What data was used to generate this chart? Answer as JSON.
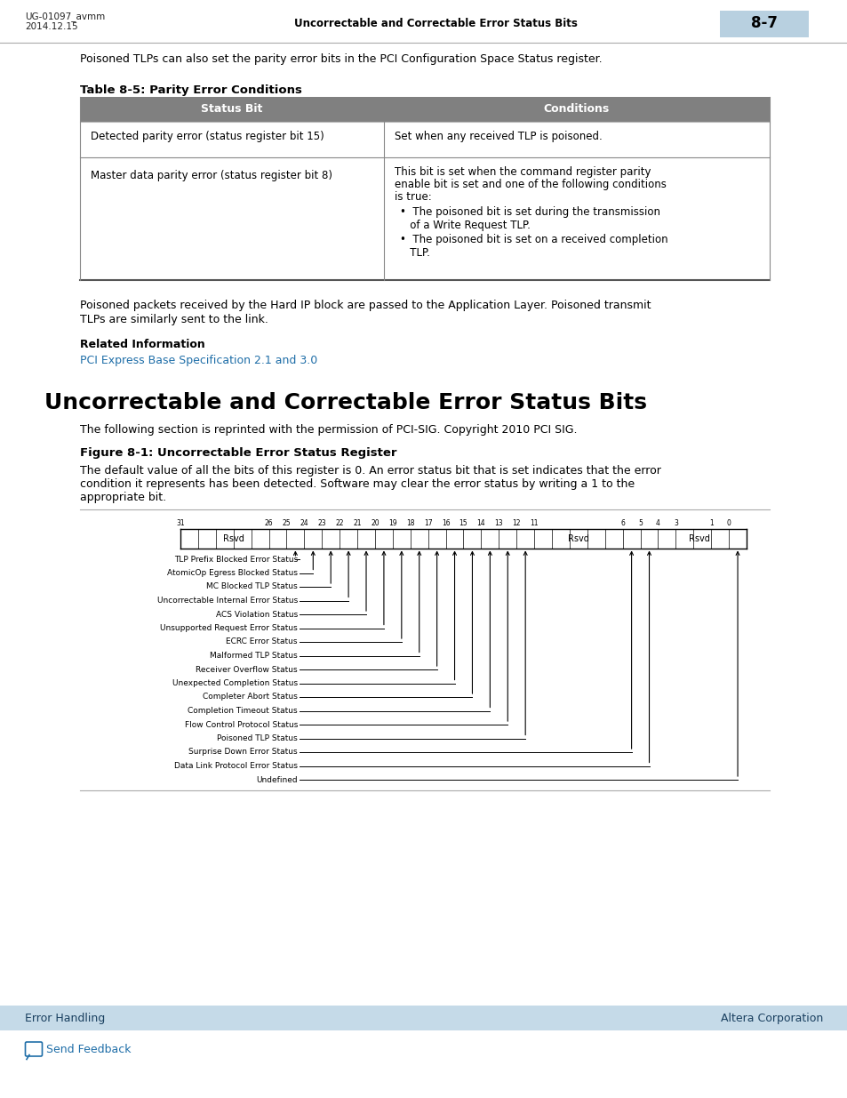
{
  "header_left1": "UG-01097_avmm",
  "header_left2": "2014.12.15",
  "header_center": "Uncorrectable and Correctable Error Status Bits",
  "header_right": "8-7",
  "header_page_bg": "#b8d0e0",
  "intro_text": "Poisoned TLPs can also set the parity error bits in the PCI Configuration Space Status register.",
  "table_title": "Table 8-5: Parity Error Conditions",
  "table_header_bg": "#808080",
  "table_col1_header": "Status Bit",
  "table_col2_header": "Conditions",
  "row1_col1": "Detected parity error (status register bit 15)",
  "row1_col2": "Set when any received TLP is poisoned.",
  "row2_col1": "Master data parity error (status register bit 8)",
  "row2_col2_line1": "This bit is set when the command register parity",
  "row2_col2_line2": "enable bit is set and one of the following conditions",
  "row2_col2_line3": "is true:",
  "row2_col2_bullet1a": "•  The poisoned bit is set during the transmission",
  "row2_col2_bullet1b": "   of a Write Request TLP.",
  "row2_col2_bullet2a": "•  The poisoned bit is set on a received completion",
  "row2_col2_bullet2b": "   TLP.",
  "para1_line1": "Poisoned packets received by the Hard IP block are passed to the Application Layer. Poisoned transmit",
  "para1_line2": "TLPs are similarly sent to the link.",
  "related_info_label": "Related Information",
  "related_info_link": "PCI Express Base Specification 2.1 and 3.0",
  "section_title": "Uncorrectable and Correctable Error Status Bits",
  "section_intro": "The following section is reprinted with the permission of PCI-SIG. Copyright 2010 PCI SIG.",
  "figure_title": "Figure 8-1: Uncorrectable Error Status Register",
  "figure_desc_line1": "The default value of all the bits of this register is 0. An error status bit that is set indicates that the error",
  "figure_desc_line2": "condition it represents has been detected. Software may clear the error status by writing a 1 to the",
  "figure_desc_line3": "appropriate bit.",
  "footer_left": "Error Handling",
  "footer_right": "Altera Corporation",
  "footer_bg": "#c5dae8",
  "send_feedback": "Send Feedback",
  "bg_color": "#ffffff",
  "text_color": "#000000",
  "link_color": "#1f6ea8",
  "bit_labels": [
    "TLP Prefix Blocked Error Status",
    "AtomicOp Egress Blocked Status",
    "MC Blocked TLP Status",
    "Uncorrectable Internal Error Status",
    "ACS Violation Status",
    "Unsupported Request Error Status",
    "ECRC Error Status",
    "Malformed TLP Status",
    "Receiver Overflow Status",
    "Unexpected Completion Status",
    "Completer Abort Status",
    "Completion Timeout Status",
    "Flow Control Protocol Status",
    "Poisoned TLP Status",
    "Surprise Down Error Status",
    "Data Link Protocol Error Status",
    "Undefined"
  ],
  "bit_assignments": [
    25,
    24,
    23,
    22,
    21,
    20,
    19,
    18,
    17,
    16,
    15,
    14,
    13,
    12,
    6,
    5,
    0
  ]
}
